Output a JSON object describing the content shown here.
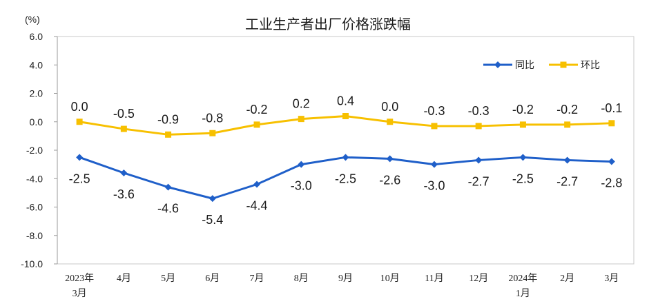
{
  "chart_data": {
    "type": "line",
    "title": "工业生产者出厂价格涨跌幅",
    "unit": "(%)",
    "ylim": [
      -10,
      6
    ],
    "yticks": [
      "6.0",
      "4.0",
      "2.0",
      "0.0",
      "-2.0",
      "-4.0",
      "-6.0",
      "-8.0",
      "-10.0"
    ],
    "categories": [
      [
        "2023年",
        "3月"
      ],
      [
        "4月"
      ],
      [
        "5月"
      ],
      [
        "6月"
      ],
      [
        "7月"
      ],
      [
        "8月"
      ],
      [
        "9月"
      ],
      [
        "10月"
      ],
      [
        "11月"
      ],
      [
        "12月"
      ],
      [
        "2024年",
        "1月"
      ],
      [
        "2月"
      ],
      [
        "3月"
      ]
    ],
    "series": [
      {
        "name": "同比",
        "color": "#1f5fc9",
        "marker": "diamond",
        "values": [
          -2.5,
          -3.6,
          -4.6,
          -5.4,
          -4.4,
          -3.0,
          -2.5,
          -2.6,
          -3.0,
          -2.7,
          -2.5,
          -2.7,
          -2.8
        ],
        "labels": [
          "-2.5",
          "-3.6",
          "-4.6",
          "-5.4",
          "-4.4",
          "-3.0",
          "-2.5",
          "-2.6",
          "-3.0",
          "-2.7",
          "-2.5",
          "-2.7",
          "-2.8"
        ]
      },
      {
        "name": "环比",
        "color": "#f7c000",
        "marker": "square",
        "values": [
          0.0,
          -0.5,
          -0.9,
          -0.8,
          -0.2,
          0.2,
          0.4,
          0.0,
          -0.3,
          -0.3,
          -0.2,
          -0.2,
          -0.1
        ],
        "labels": [
          "0.0",
          "-0.5",
          "-0.9",
          "-0.8",
          "-0.2",
          "0.2",
          "0.4",
          "0.0",
          "-0.3",
          "-0.3",
          "-0.2",
          "-0.2",
          "-0.1"
        ]
      }
    ],
    "legend": "top-right",
    "grid": false
  }
}
